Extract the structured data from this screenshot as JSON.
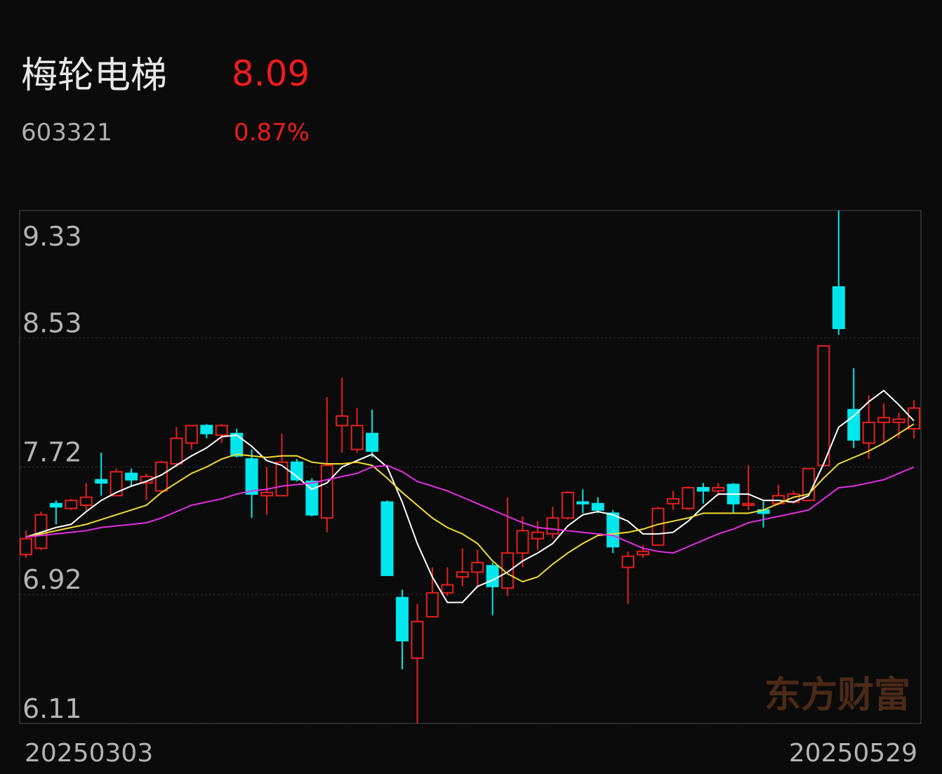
{
  "header": {
    "name": "梅轮电梯",
    "code": "603321",
    "price": "8.09",
    "change": "0.87%"
  },
  "watermark": "东方财富",
  "chart_data": {
    "type": "candlestick",
    "categories": [
      "20250303",
      null,
      null,
      null,
      null,
      null,
      null,
      null,
      null,
      null,
      null,
      null,
      null,
      null,
      null,
      null,
      null,
      null,
      null,
      null,
      null,
      null,
      null,
      null,
      null,
      null,
      null,
      null,
      null,
      null,
      null,
      null,
      null,
      null,
      null,
      null,
      null,
      null,
      null,
      null,
      null,
      null,
      null,
      null,
      null,
      null,
      null,
      null,
      null,
      null,
      null,
      null,
      null,
      null,
      null,
      null,
      null,
      null,
      null,
      "20250529"
    ],
    "open": [
      7.17,
      7.21,
      7.49,
      7.46,
      7.48,
      7.64,
      7.54,
      7.68,
      7.62,
      7.57,
      7.74,
      7.87,
      7.98,
      7.92,
      7.93,
      7.77,
      7.54,
      7.54,
      7.75,
      7.63,
      7.4,
      7.98,
      7.83,
      7.93,
      7.5,
      6.9,
      6.52,
      6.78,
      6.93,
      7.03,
      7.06,
      7.1,
      6.96,
      7.18,
      7.27,
      7.3,
      7.4,
      7.5,
      7.49,
      7.43,
      7.09,
      7.17,
      7.23,
      7.49,
      7.46,
      7.59,
      7.57,
      7.61,
      7.48,
      7.45,
      7.49,
      7.5,
      7.51,
      7.73,
      8.85,
      8.08,
      7.87,
      8.0,
      8.0,
      7.96
    ],
    "high": [
      7.32,
      7.44,
      7.51,
      7.52,
      7.62,
      7.81,
      7.71,
      7.71,
      7.68,
      7.76,
      7.97,
      7.98,
      7.99,
      7.99,
      7.96,
      7.83,
      7.72,
      7.93,
      7.77,
      7.65,
      8.16,
      8.28,
      8.09,
      8.08,
      7.51,
      6.95,
      6.86,
      7.09,
      7.09,
      7.21,
      7.2,
      7.12,
      7.53,
      7.41,
      7.38,
      7.47,
      7.57,
      7.58,
      7.53,
      7.45,
      7.19,
      7.23,
      7.47,
      7.57,
      7.6,
      7.62,
      7.62,
      7.62,
      7.73,
      7.51,
      7.61,
      7.57,
      7.71,
      8.48,
      9.33,
      8.34,
      8.17,
      8.12,
      8.06,
      8.14
    ],
    "low": [
      7.15,
      7.2,
      7.36,
      7.45,
      7.45,
      7.54,
      7.54,
      7.6,
      7.51,
      7.57,
      7.72,
      7.83,
      7.9,
      7.87,
      7.78,
      7.4,
      7.42,
      7.54,
      7.63,
      7.41,
      7.31,
      7.81,
      7.81,
      7.78,
      7.04,
      6.45,
      6.11,
      6.78,
      6.91,
      6.97,
      6.96,
      6.79,
      6.91,
      7.09,
      7.2,
      7.27,
      7.39,
      7.43,
      7.43,
      7.18,
      6.86,
      7.15,
      7.23,
      7.45,
      7.45,
      7.49,
      7.54,
      7.43,
      7.45,
      7.34,
      7.48,
      7.49,
      7.51,
      7.73,
      8.55,
      7.84,
      7.77,
      7.87,
      7.9,
      7.9
    ],
    "close": [
      7.27,
      7.42,
      7.47,
      7.51,
      7.53,
      7.62,
      7.69,
      7.64,
      7.66,
      7.75,
      7.9,
      7.98,
      7.93,
      7.98,
      7.79,
      7.55,
      7.56,
      7.75,
      7.64,
      7.42,
      7.73,
      8.04,
      7.98,
      7.82,
      7.04,
      6.63,
      6.75,
      6.93,
      6.98,
      7.06,
      7.12,
      6.97,
      7.18,
      7.32,
      7.31,
      7.4,
      7.56,
      7.49,
      7.45,
      7.22,
      7.16,
      7.19,
      7.46,
      7.52,
      7.59,
      7.57,
      7.59,
      7.49,
      7.49,
      7.43,
      7.54,
      7.55,
      7.71,
      8.48,
      8.59,
      7.89,
      8.0,
      8.03,
      8.02,
      8.09
    ],
    "up_color": "#e5201f",
    "down_color": "#00e8ee",
    "lines": [
      {
        "color": "#ffffff",
        "values": [
          7.28,
          7.31,
          7.34,
          7.36,
          7.44,
          7.51,
          7.56,
          7.6,
          7.63,
          7.67,
          7.73,
          7.79,
          7.84,
          7.91,
          7.92,
          7.85,
          7.76,
          7.73,
          7.66,
          7.58,
          7.62,
          7.72,
          7.76,
          7.8,
          7.72,
          7.5,
          7.24,
          7.03,
          6.87,
          6.87,
          6.97,
          7.01,
          7.06,
          7.13,
          7.18,
          7.24,
          7.35,
          7.42,
          7.44,
          7.42,
          7.38,
          7.3,
          7.3,
          7.31,
          7.38,
          7.47,
          7.55,
          7.55,
          7.55,
          7.51,
          7.51,
          7.5,
          7.54,
          7.74,
          7.97,
          8.04,
          8.13,
          8.2,
          8.11,
          8.01
        ]
      },
      {
        "color": "#f2dc2e",
        "values": [
          7.28,
          7.3,
          7.32,
          7.34,
          7.36,
          7.39,
          7.42,
          7.45,
          7.48,
          7.56,
          7.62,
          7.68,
          7.72,
          7.77,
          7.8,
          7.79,
          7.78,
          7.79,
          7.79,
          7.75,
          7.74,
          7.74,
          7.75,
          7.73,
          7.65,
          7.56,
          7.48,
          7.4,
          7.34,
          7.3,
          7.24,
          7.13,
          7.05,
          7.0,
          7.03,
          7.11,
          7.18,
          7.24,
          7.29,
          7.3,
          7.31,
          7.33,
          7.36,
          7.38,
          7.4,
          7.43,
          7.43,
          7.43,
          7.43,
          7.45,
          7.49,
          7.53,
          7.55,
          7.65,
          7.74,
          7.78,
          7.82,
          7.87,
          7.93,
          7.99
        ]
      },
      {
        "color": "#e22ee0",
        "values": [
          7.28,
          7.29,
          7.3,
          7.31,
          7.32,
          7.34,
          7.35,
          7.36,
          7.37,
          7.4,
          7.44,
          7.48,
          7.5,
          7.52,
          7.55,
          7.57,
          7.58,
          7.6,
          7.61,
          7.62,
          7.64,
          7.66,
          7.68,
          7.72,
          7.73,
          7.69,
          7.63,
          7.6,
          7.57,
          7.53,
          7.49,
          7.45,
          7.41,
          7.37,
          7.34,
          7.33,
          7.32,
          7.31,
          7.3,
          7.29,
          7.25,
          7.21,
          7.19,
          7.18,
          7.22,
          7.26,
          7.3,
          7.33,
          7.37,
          7.39,
          7.41,
          7.43,
          7.45,
          7.52,
          7.59,
          7.6,
          7.62,
          7.64,
          7.68,
          7.72
        ]
      }
    ],
    "ylim": [
      6.11,
      9.33
    ],
    "yticks": [
      9.33,
      8.53,
      7.72,
      6.92,
      6.11
    ],
    "grid": true
  }
}
